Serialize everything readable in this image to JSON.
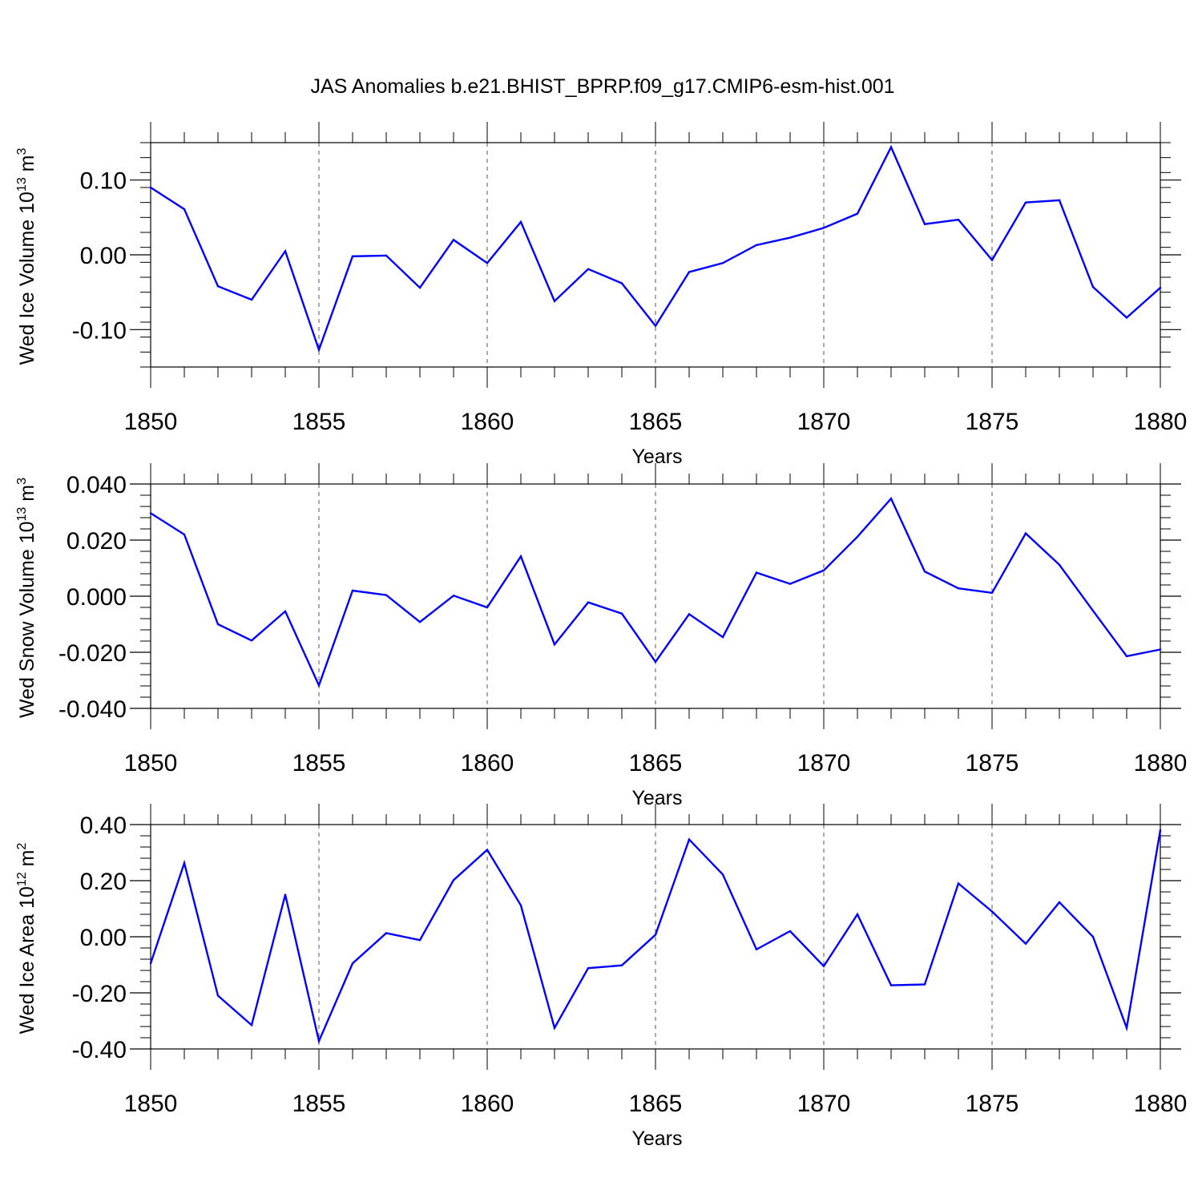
{
  "title": "JAS Anomalies b.e21.BHIST_BPRP.f09_g17.CMIP6-esm-hist.001",
  "colors": {
    "line": "#0000ff",
    "axis": "#000000",
    "grid": "#555555"
  },
  "chart_data": [
    {
      "type": "line",
      "ylabel_parts": {
        "main": "Wed Ice Volume 10",
        "exp": "13",
        "unit": " m",
        "unit_exp": "3"
      },
      "xlabel": "Years",
      "x": [
        1850,
        1851,
        1852,
        1853,
        1854,
        1855,
        1856,
        1857,
        1858,
        1859,
        1860,
        1861,
        1862,
        1863,
        1864,
        1865,
        1866,
        1867,
        1868,
        1869,
        1870,
        1871,
        1872,
        1873,
        1874,
        1875,
        1876,
        1877,
        1878,
        1879,
        1880
      ],
      "values": [
        0.09,
        0.061,
        -0.042,
        -0.06,
        0.005,
        -0.127,
        -0.002,
        -0.001,
        -0.044,
        0.02,
        -0.011,
        0.044,
        -0.062,
        -0.019,
        -0.038,
        -0.095,
        -0.023,
        -0.011,
        0.013,
        0.023,
        0.036,
        0.055,
        0.144,
        0.041,
        0.047,
        -0.007,
        0.07,
        0.073,
        -0.043,
        -0.084,
        -0.044
      ],
      "xlim": [
        1850,
        1880
      ],
      "ylim": [
        -0.15,
        0.15
      ],
      "yticks": [
        -0.1,
        0.0,
        0.1
      ],
      "ytick_labels": [
        "-0.10",
        "0.00",
        "0.10"
      ],
      "yminor_step": 0.02,
      "xticks": [
        1850,
        1855,
        1860,
        1865,
        1870,
        1875,
        1880
      ],
      "xtick_labels": [
        "1850",
        "1855",
        "1860",
        "1865",
        "1870",
        "1875",
        "1880"
      ]
    },
    {
      "type": "line",
      "ylabel_parts": {
        "main": "Wed Snow Volume 10",
        "exp": "13",
        "unit": " m",
        "unit_exp": "3"
      },
      "xlabel": "Years",
      "x": [
        1850,
        1851,
        1852,
        1853,
        1854,
        1855,
        1856,
        1857,
        1858,
        1859,
        1860,
        1861,
        1862,
        1863,
        1864,
        1865,
        1866,
        1867,
        1868,
        1869,
        1870,
        1871,
        1872,
        1873,
        1874,
        1875,
        1876,
        1877,
        1878,
        1879,
        1880
      ],
      "values": [
        0.0296,
        0.022,
        -0.01,
        -0.0158,
        -0.0054,
        -0.0318,
        0.002,
        0.0004,
        -0.0092,
        0.0002,
        -0.004,
        0.0142,
        -0.0172,
        -0.0022,
        -0.0062,
        -0.0234,
        -0.0064,
        -0.0146,
        0.0084,
        0.0044,
        0.0092,
        0.0212,
        0.0348,
        0.0088,
        0.0028,
        0.0012,
        0.0224,
        0.0112,
        -0.0052,
        -0.0214,
        -0.019
      ],
      "xlim": [
        1850,
        1880
      ],
      "ylim": [
        -0.04,
        0.04
      ],
      "yticks": [
        -0.04,
        -0.02,
        0.0,
        0.02,
        0.04
      ],
      "ytick_labels": [
        "-0.040",
        "-0.020",
        "0.000",
        "0.020",
        "0.040"
      ],
      "yminor_step": 0.004,
      "xticks": [
        1850,
        1855,
        1860,
        1865,
        1870,
        1875,
        1880
      ],
      "xtick_labels": [
        "1850",
        "1855",
        "1860",
        "1865",
        "1870",
        "1875",
        "1880"
      ]
    },
    {
      "type": "line",
      "ylabel_parts": {
        "main": "Wed Ice Area 10",
        "exp": "12",
        "unit": " m",
        "unit_exp": "2"
      },
      "xlabel": "Years",
      "x": [
        1850,
        1851,
        1852,
        1853,
        1854,
        1855,
        1856,
        1857,
        1858,
        1859,
        1860,
        1861,
        1862,
        1863,
        1864,
        1865,
        1866,
        1867,
        1868,
        1869,
        1870,
        1871,
        1872,
        1873,
        1874,
        1875,
        1876,
        1877,
        1878,
        1879,
        1880
      ],
      "values": [
        -0.095,
        0.263,
        -0.21,
        -0.315,
        0.15,
        -0.372,
        -0.095,
        0.013,
        -0.012,
        0.202,
        0.31,
        0.112,
        -0.325,
        -0.112,
        -0.102,
        0.007,
        0.347,
        0.222,
        -0.045,
        0.02,
        -0.105,
        0.08,
        -0.173,
        -0.17,
        0.19,
        0.09,
        -0.025,
        0.123,
        0.0,
        -0.325,
        0.38
      ],
      "xlim": [
        1850,
        1880
      ],
      "ylim": [
        -0.4,
        0.4
      ],
      "yticks": [
        -0.4,
        -0.2,
        0.0,
        0.2,
        0.4
      ],
      "ytick_labels": [
        "-0.40",
        "-0.20",
        "0.00",
        "0.20",
        "0.40"
      ],
      "yminor_step": 0.04,
      "xticks": [
        1850,
        1855,
        1860,
        1865,
        1870,
        1875,
        1880
      ],
      "xtick_labels": [
        "1850",
        "1855",
        "1860",
        "1865",
        "1870",
        "1875",
        "1880"
      ]
    }
  ]
}
